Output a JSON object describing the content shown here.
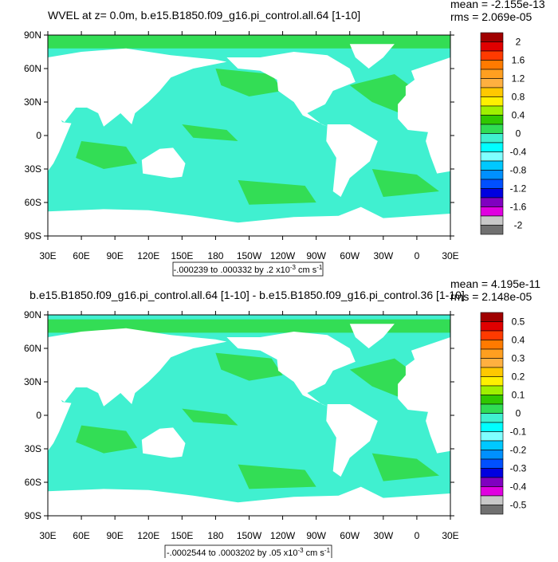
{
  "panels": [
    {
      "title": "WVEL at z=   0.0m, b.e15.B1850.f09_g16.pi_control.all.64 [1-10]",
      "mean": "mean = -2.155e-13",
      "rms": "rms = 2.069e-05",
      "lat_ticks": [
        "90N",
        "60N",
        "30N",
        "0",
        "30S",
        "60S",
        "90S"
      ],
      "lon_ticks": [
        "30E",
        "60E",
        "90E",
        "120E",
        "150E",
        "180",
        "150W",
        "120W",
        "90W",
        "60W",
        "30W",
        "0",
        "30E"
      ],
      "colorbar": {
        "labels": [
          2,
          1.6,
          1.2,
          0.8,
          0.4,
          0,
          -0.4,
          -0.8,
          -1.2,
          -1.6,
          -2
        ],
        "colors": [
          "#a00000",
          "#e00000",
          "#ff3a00",
          "#ff7a00",
          "#ff9f20",
          "#ffb040",
          "#ffc800",
          "#fff000",
          "#9ff000",
          "#30c800",
          "#30dd55",
          "#40f0d0",
          "#00ffff",
          "#80ffff",
          "#00c8ff",
          "#0090ff",
          "#0050ff",
          "#0000e0",
          "#8000c0",
          "#e000e0",
          "#c8c8c8",
          "#707070"
        ]
      },
      "range_note": {
        "text": "-.000239 to .000332 by .2 x10",
        "exp": "-3",
        "unit": " cm s",
        "unit_exp": "-1"
      }
    },
    {
      "title": "b.e15.B1850.f09_g16.pi_control.all.64 [1-10] - b.e15.B1850.f09_g16.pi_control.36 [1-10]",
      "mean": "mean = 4.195e-11",
      "rms": "rms = 2.148e-05",
      "lat_ticks": [
        "90N",
        "60N",
        "30N",
        "0",
        "30S",
        "60S",
        "90S"
      ],
      "lon_ticks": [
        "30E",
        "60E",
        "90E",
        "120E",
        "150E",
        "180",
        "150W",
        "120W",
        "90W",
        "60W",
        "30W",
        "0",
        "30E"
      ],
      "colorbar": {
        "labels": [
          0.5,
          0.4,
          0.3,
          0.2,
          0.1,
          0,
          -0.1,
          -0.2,
          -0.3,
          -0.4,
          -0.5
        ],
        "colors": [
          "#a00000",
          "#e00000",
          "#ff3a00",
          "#ff7a00",
          "#ff9f20",
          "#ffb040",
          "#ffc800",
          "#fff000",
          "#9ff000",
          "#30c800",
          "#30dd55",
          "#40f0d0",
          "#00ffff",
          "#80ffff",
          "#00c8ff",
          "#0090ff",
          "#0050ff",
          "#0000e0",
          "#8000c0",
          "#e000e0",
          "#c8c8c8",
          "#707070"
        ]
      },
      "range_note": {
        "text": "-.0002544 to .0003202 by .05 x10",
        "exp": "-3",
        "unit": " cm s",
        "unit_exp": "-1"
      }
    }
  ]
}
